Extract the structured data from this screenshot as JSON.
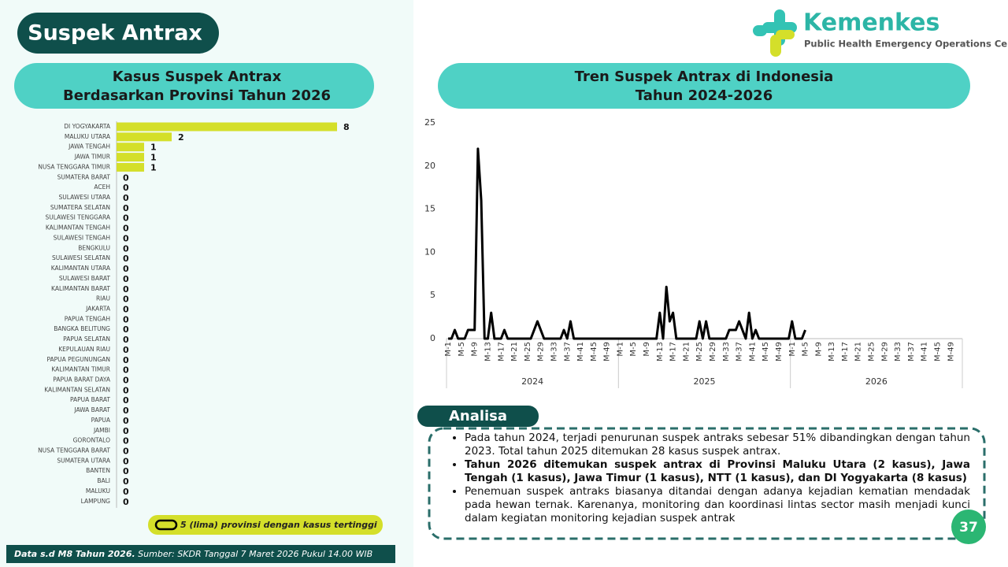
{
  "header": {
    "title": "Suspek Antrax",
    "logo_name": "Kemenkes",
    "logo_subtitle": "Public Health Emergency Operations Center"
  },
  "chart_data": [
    {
      "type": "bar",
      "orientation": "horizontal",
      "title_lines": [
        "Kasus Suspek Antrax",
        "Berdasarkan Provinsi Tahun 2026"
      ],
      "categories": [
        "DI YOGYAKARTA",
        "MALUKU UTARA",
        "JAWA TENGAH",
        "JAWA TIMUR",
        "NUSA TENGGARA TIMUR",
        "SUMATERA BARAT",
        "ACEH",
        "SULAWESI UTARA",
        "SUMATERA SELATAN",
        "SULAWESI TENGGARA",
        "KALIMANTAN TENGAH",
        "SULAWESI TENGAH",
        "BENGKULU",
        "SULAWESI SELATAN",
        "KALIMANTAN UTARA",
        "SULAWESI BARAT",
        "KALIMANTAN BARAT",
        "RIAU",
        "JAKARTA",
        "PAPUA TENGAH",
        "BANGKA BELITUNG",
        "PAPUA SELATAN",
        "KEPULAUAN RIAU",
        "PAPUA PEGUNUNGAN",
        "KALIMANTAN TIMUR",
        "PAPUA BARAT DAYA",
        "KALIMANTAN SELATAN",
        "PAPUA BARAT",
        "JAWA BARAT",
        "PAPUA",
        "JAMBI",
        "GORONTALO",
        "NUSA TENGGARA BARAT",
        "SUMATERA UTARA",
        "BANTEN",
        "BALI",
        "MALUKU",
        "LAMPUNG"
      ],
      "values": [
        8,
        2,
        1,
        1,
        1,
        0,
        0,
        0,
        0,
        0,
        0,
        0,
        0,
        0,
        0,
        0,
        0,
        0,
        0,
        0,
        0,
        0,
        0,
        0,
        0,
        0,
        0,
        0,
        0,
        0,
        0,
        0,
        0,
        0,
        0,
        0,
        0,
        0
      ],
      "color": "#d4df2a",
      "legend_label": "5 (lima) provinsi dengan kasus tertinggi"
    },
    {
      "type": "line",
      "title_lines": [
        "Tren Suspek Antrax di Indonesia",
        "Tahun 2024-2026"
      ],
      "categories": [
        "M-1",
        null,
        null,
        null,
        "M-5",
        null,
        null,
        null,
        "M-9",
        null,
        null,
        null,
        "M-13",
        null,
        null,
        null,
        "M-17",
        null,
        null,
        null,
        "M-21",
        null,
        null,
        null,
        "M-25",
        null,
        null,
        null,
        "M-29",
        null,
        null,
        null,
        "M-33",
        null,
        null,
        null,
        "M-37",
        null,
        null,
        null,
        "M-41",
        null,
        null,
        null,
        "M-45",
        null,
        null,
        null,
        "M-49",
        null,
        null,
        null,
        "M-1",
        null,
        null,
        null,
        "M-5",
        null,
        null,
        null,
        "M-9",
        null,
        null,
        null,
        "M-13",
        null,
        null,
        null,
        "M-17",
        null,
        null,
        null,
        "M-21",
        null,
        null,
        null,
        "M-25",
        null,
        null,
        null,
        "M-29",
        null,
        null,
        null,
        "M-33",
        null,
        null,
        null,
        "M-37",
        null,
        null,
        null,
        "M-41",
        null,
        null,
        null,
        "M-45",
        null,
        null,
        null,
        "M-49",
        null,
        null,
        null,
        "M-1",
        null,
        null,
        null,
        "M-5",
        null,
        null,
        null,
        "M-9",
        null,
        null,
        null,
        "M-13",
        null,
        null,
        null,
        "M-17",
        null,
        null,
        null,
        "M-21",
        null,
        null,
        null,
        "M-25",
        null,
        null,
        null,
        "M-29",
        null,
        null,
        null,
        "M-33",
        null,
        null,
        null,
        "M-37",
        null,
        null,
        null,
        "M-41",
        null,
        null,
        null,
        "M-45",
        null,
        null,
        null,
        "M-49",
        null,
        null,
        null
      ],
      "x_groups": [
        "2024",
        "2025",
        "2026"
      ],
      "values": [
        0,
        0,
        1,
        0,
        0,
        0,
        1,
        1,
        1,
        22,
        16,
        0,
        0,
        3,
        0,
        0,
        0,
        1,
        0,
        0,
        0,
        0,
        0,
        0,
        0,
        0,
        1,
        2,
        1,
        0,
        0,
        0,
        0,
        0,
        0,
        1,
        0,
        2,
        0,
        0,
        0,
        0,
        0,
        0,
        0,
        0,
        0,
        0,
        0,
        0,
        0,
        0,
        0,
        0,
        0,
        0,
        0,
        0,
        0,
        0,
        0,
        0,
        0,
        0,
        3,
        0,
        6,
        2,
        3,
        0,
        0,
        0,
        0,
        0,
        0,
        0,
        2,
        0,
        2,
        0,
        0,
        0,
        0,
        0,
        0,
        1,
        1,
        1,
        2,
        1,
        0,
        3,
        0,
        1,
        0,
        0,
        0,
        0,
        0,
        0,
        0,
        0,
        0,
        0,
        2,
        0,
        0,
        0,
        1,
        null,
        null,
        null,
        null,
        null,
        null,
        null,
        null,
        null,
        null,
        null,
        null,
        null,
        null,
        null,
        null,
        null,
        null,
        null,
        null,
        null,
        null,
        null,
        null,
        null,
        null,
        null,
        null,
        null,
        null,
        null,
        null,
        null,
        null,
        null,
        null,
        null,
        null,
        null,
        null,
        null,
        null,
        null,
        null,
        null,
        null,
        null
      ],
      "color": "#000000",
      "ylim": [
        0,
        25
      ],
      "yticks": [
        0,
        5,
        10,
        15,
        20,
        25
      ]
    }
  ],
  "analysis": {
    "title": "Analisa",
    "bullets": [
      {
        "text": "Pada tahun 2024, terjadi penurunan suspek antraks sebesar 51% dibandingkan dengan tahun 2023. Total tahun 2025 ditemukan 28 kasus suspek antrax.",
        "bold": false
      },
      {
        "text": "Tahun 2026 ditemukan suspek antrax di Provinsi Maluku Utara (2 kasus), Jawa Tengah (1 kasus), Jawa Timur (1 kasus), NTT (1 kasus), dan DI Yogyakarta (8 kasus)",
        "bold": true
      },
      {
        "text": "Penemuan suspek antraks biasanya ditandai dengan adanya kejadian kematian mendadak pada hewan ternak. Karenanya, monitoring dan koordinasi lintas sector masih menjadi kunci dalam kegiatan monitoring kejadian suspek antrak",
        "bold": false
      }
    ]
  },
  "footer": {
    "period": "Data s.d M8 Tahun 2026.",
    "source": "Sumber: SKDR Tanggal 7 Maret 2026 Pukul 14.00 WIB"
  },
  "page_number": "37"
}
